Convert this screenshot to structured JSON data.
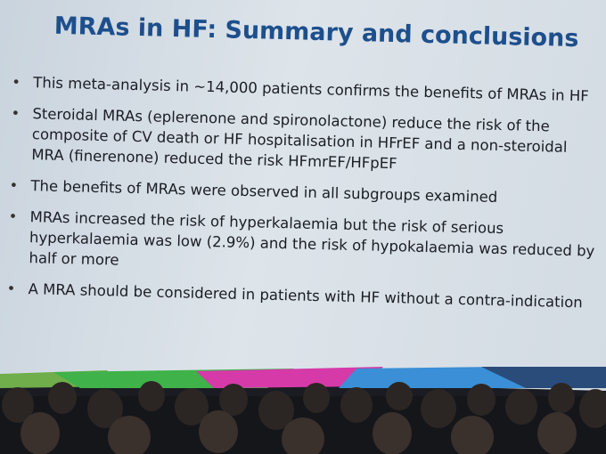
{
  "slide": {
    "title": "MRAs in HF: Summary and conclusions",
    "bullets": [
      [
        "This meta-analysis in ~14,000 patients confirms the benefits of MRAs in HF"
      ],
      [
        "Steroidal MRAs (eplerenone and spironolactone) reduce the risk of the",
        "composite of CV death or HF hospitalisation in HFrEF and a non-steroidal",
        "MRA (finerenone) reduced the risk HFmrEF/HFpEF"
      ],
      [
        "The benefits of MRAs were observed in all subgroups examined"
      ],
      [
        "MRAs increased the risk of hyperkalaemia but the risk of serious",
        "hyperkalaemia was low (2.9%) and the risk of hypokalaemia was reduced by",
        "half or more"
      ],
      [
        "A MRA should be considered in patients with HF without a contra-indication"
      ]
    ]
  }
}
